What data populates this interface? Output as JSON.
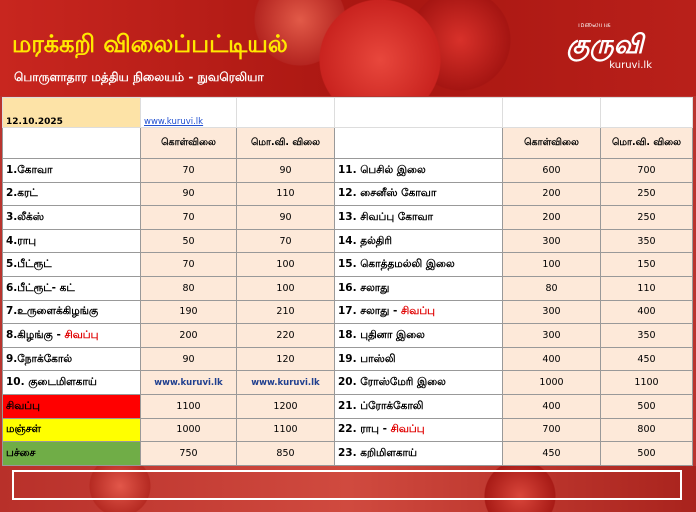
{
  "header": {
    "title": "மரக்கறி விலைப்பட்டியல்",
    "subtitle": "பொருளாதார மத்திய நிலையம் - நுவரெலியா",
    "logo_tag": "மலையக",
    "logo_text": "குருவி",
    "logo_url": "kuruvi.lk"
  },
  "table": {
    "date": "12.10.2025",
    "website": "www.kuruvi.lk",
    "columns": [
      "கொள்விலை",
      "மொ.வி. விலை",
      "கொள்விலை",
      "மொ.வி. விலை"
    ],
    "left": [
      {
        "name": "1.கோவா",
        "buy": 70,
        "sell": 90
      },
      {
        "name": "2.கரட்",
        "buy": 90,
        "sell": 110
      },
      {
        "name": "3.லீக்ஸ்",
        "buy": 70,
        "sell": 90
      },
      {
        "name": "4.ராபு",
        "buy": 50,
        "sell": 70
      },
      {
        "name": "5.பீட்ரூட்",
        "buy": 70,
        "sell": 100
      },
      {
        "name": "6.பீட்ரூட்- கட்",
        "buy": 80,
        "sell": 100
      },
      {
        "name": "7.உருளைக்கிழங்கு",
        "buy": 190,
        "sell": 210
      },
      {
        "name": "8.கிழங்கு - ",
        "highlight": "சிவப்பு",
        "buy": 200,
        "sell": 220
      },
      {
        "name": "9.நோக்கோல்",
        "buy": 90,
        "sell": 120
      },
      {
        "name": "10. குடைமிளகாய்",
        "buy": "www.kuruvi.lk",
        "sell": "www.kuruvi.lk"
      },
      {
        "name": "சிவப்பு",
        "buy": 1100,
        "sell": 1200,
        "color": "#ff0000"
      },
      {
        "name": "மஞ்சள்",
        "buy": 1000,
        "sell": 1100,
        "color": "#ffff00"
      },
      {
        "name": "பச்சை",
        "buy": 750,
        "sell": 850,
        "color": "#70ad47"
      }
    ],
    "right": [
      {
        "name": "11. பெசில் இலை",
        "buy": 600,
        "sell": 700
      },
      {
        "name": "12. சைனீஸ் கோவா",
        "buy": 200,
        "sell": 250
      },
      {
        "name": "13. சிவப்பு கோவா",
        "buy": 200,
        "sell": 250
      },
      {
        "name": "14. தல்திரி",
        "buy": 300,
        "sell": 350
      },
      {
        "name": "15. கொத்தமல்லி இலை",
        "buy": 100,
        "sell": 150
      },
      {
        "name": "16. சலாது",
        "buy": 80,
        "sell": 110
      },
      {
        "name": "17. சலாது - ",
        "highlight": "சிவப்பு",
        "buy": 300,
        "sell": 400
      },
      {
        "name": "18. புதினா இலை",
        "buy": 300,
        "sell": 350
      },
      {
        "name": "19. பாஸ்லி",
        "buy": 400,
        "sell": 450
      },
      {
        "name": "20. ரோஸ்மேரி இலை",
        "buy": 1000,
        "sell": 1100
      },
      {
        "name": "21. ப்ரோக்கோலி",
        "buy": 400,
        "sell": 500
      },
      {
        "name": "22. ராபு - ",
        "highlight": "சிவப்பு",
        "buy": 700,
        "sell": 800
      },
      {
        "name": "23. கறிமிளகாய்",
        "buy": 450,
        "sell": 500
      }
    ]
  }
}
